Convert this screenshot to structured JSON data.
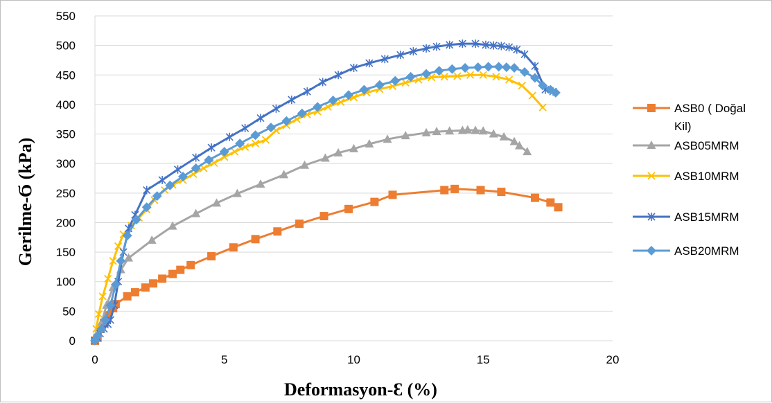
{
  "chart_data": {
    "type": "line",
    "title": "",
    "xlabel": "Deformasyon-Ɛ (%)",
    "ylabel": "Gerilme-Ϭ (kPa)",
    "xlim": [
      0,
      20
    ],
    "ylim": [
      0,
      550
    ],
    "x_ticks": [
      0,
      5,
      10,
      15,
      20
    ],
    "y_ticks": [
      0,
      50,
      100,
      150,
      200,
      250,
      300,
      350,
      400,
      450,
      500,
      550
    ],
    "grid": "horizontal",
    "legend_position": "right",
    "series": [
      {
        "name": "ASB0 ( Doğal Kil)",
        "legend_lines": [
          "ASB0 ( Doğal",
          "Kil)"
        ],
        "color": "#ED7D31",
        "marker": "square",
        "x": [
          0,
          0.1,
          0.2,
          0.35,
          0.5,
          0.7,
          0.8,
          1.25,
          1.55,
          1.95,
          2.25,
          2.6,
          3.0,
          3.3,
          3.7,
          4.5,
          5.35,
          6.2,
          7.05,
          7.9,
          8.85,
          9.8,
          10.8,
          11.5,
          13.5,
          13.9,
          14.9,
          15.7,
          17.0,
          17.6,
          17.9
        ],
        "y": [
          0,
          5,
          20,
          30,
          43,
          55,
          62,
          75,
          82,
          90,
          97,
          105,
          113,
          120,
          128,
          143,
          158,
          172,
          185,
          198,
          211,
          223,
          235,
          247,
          255,
          257,
          255,
          252,
          242,
          234,
          226
        ]
      },
      {
        "name": "ASB05MRM",
        "legend_lines": [
          "ASB05MRM"
        ],
        "color": "#A5A5A5",
        "marker": "triangle",
        "x": [
          0,
          0.1,
          0.25,
          0.45,
          0.7,
          1.0,
          1.3,
          2.2,
          3.0,
          3.9,
          4.7,
          5.5,
          6.4,
          7.3,
          8.1,
          8.9,
          9.4,
          10.0,
          10.6,
          11.3,
          12.0,
          12.8,
          13.2,
          13.7,
          14.2,
          14.4,
          14.7,
          15.0,
          15.4,
          15.8,
          16.2,
          16.4,
          16.7
        ],
        "y": [
          0,
          10,
          30,
          60,
          90,
          120,
          140,
          170,
          194,
          215,
          233,
          249,
          265,
          281,
          297,
          309,
          318,
          325,
          333,
          341,
          347,
          352,
          354,
          355,
          356,
          357,
          356,
          355,
          350,
          345,
          337,
          330,
          320
        ]
      },
      {
        "name": "ASB10MRM",
        "legend_lines": [
          "ASB10MRM"
        ],
        "color": "#FFC000",
        "marker": "x",
        "x": [
          0,
          0.05,
          0.15,
          0.3,
          0.5,
          0.7,
          0.9,
          1.1,
          1.4,
          1.7,
          2.0,
          2.3,
          2.7,
          3.0,
          3.4,
          3.8,
          4.2,
          4.6,
          5.0,
          5.4,
          5.8,
          6.2,
          6.6,
          7.0,
          7.4,
          7.8,
          8.2,
          8.6,
          9.0,
          9.5,
          10.0,
          10.5,
          11.0,
          11.5,
          12.0,
          12.5,
          13.0,
          13.5,
          14.0,
          14.5,
          15.0,
          15.5,
          16.0,
          16.5,
          16.9,
          17.3
        ],
        "y": [
          0,
          20,
          45,
          75,
          105,
          135,
          160,
          180,
          195,
          208,
          222,
          238,
          255,
          264,
          272,
          282,
          292,
          301,
          311,
          320,
          328,
          334,
          340,
          356,
          365,
          375,
          383,
          388,
          396,
          404,
          412,
          420,
          426,
          431,
          437,
          442,
          446,
          447,
          448,
          450,
          450,
          447,
          442,
          432,
          415,
          395
        ]
      },
      {
        "name": "ASB15MRM",
        "legend_lines": [
          "ASB15MRM"
        ],
        "color": "#4472C4",
        "marker": "star",
        "x": [
          0,
          0.1,
          0.2,
          0.35,
          0.5,
          0.6,
          0.75,
          0.9,
          1.1,
          1.3,
          1.55,
          2.0,
          2.6,
          3.2,
          3.9,
          4.5,
          5.2,
          5.8,
          6.4,
          7.0,
          7.6,
          8.2,
          8.8,
          9.4,
          10.0,
          10.6,
          11.2,
          11.8,
          12.3,
          12.8,
          13.2,
          13.7,
          14.2,
          14.7,
          15.1,
          15.4,
          15.7,
          16.0,
          16.3,
          16.6,
          17.0,
          17.4,
          17.7
        ],
        "y": [
          0,
          5,
          12,
          20,
          28,
          35,
          60,
          100,
          150,
          190,
          213,
          255,
          272,
          290,
          310,
          327,
          345,
          360,
          377,
          393,
          408,
          422,
          438,
          450,
          462,
          470,
          477,
          484,
          490,
          495,
          498,
          501,
          503,
          503,
          501,
          500,
          499,
          497,
          493,
          485,
          465,
          425,
          422
        ]
      },
      {
        "name": "ASB20MRM",
        "legend_lines": [
          "ASB20MRM"
        ],
        "color": "#5B9BD5",
        "marker": "diamond",
        "x": [
          0,
          0.1,
          0.25,
          0.4,
          0.6,
          0.8,
          1.0,
          1.25,
          1.6,
          2.0,
          2.4,
          2.9,
          3.4,
          3.9,
          4.4,
          5.0,
          5.6,
          6.2,
          6.8,
          7.4,
          8.0,
          8.6,
          9.2,
          9.8,
          10.4,
          11.0,
          11.6,
          12.2,
          12.8,
          13.3,
          13.8,
          14.3,
          14.8,
          15.2,
          15.6,
          15.9,
          16.2,
          16.6,
          17.0,
          17.3,
          17.6,
          17.8
        ],
        "y": [
          0,
          8,
          20,
          35,
          60,
          95,
          135,
          178,
          205,
          226,
          245,
          263,
          278,
          292,
          306,
          320,
          334,
          348,
          361,
          372,
          385,
          396,
          407,
          416,
          425,
          433,
          440,
          447,
          452,
          457,
          460,
          462,
          463,
          464,
          464,
          463,
          462,
          455,
          445,
          432,
          425,
          420
        ]
      }
    ]
  }
}
